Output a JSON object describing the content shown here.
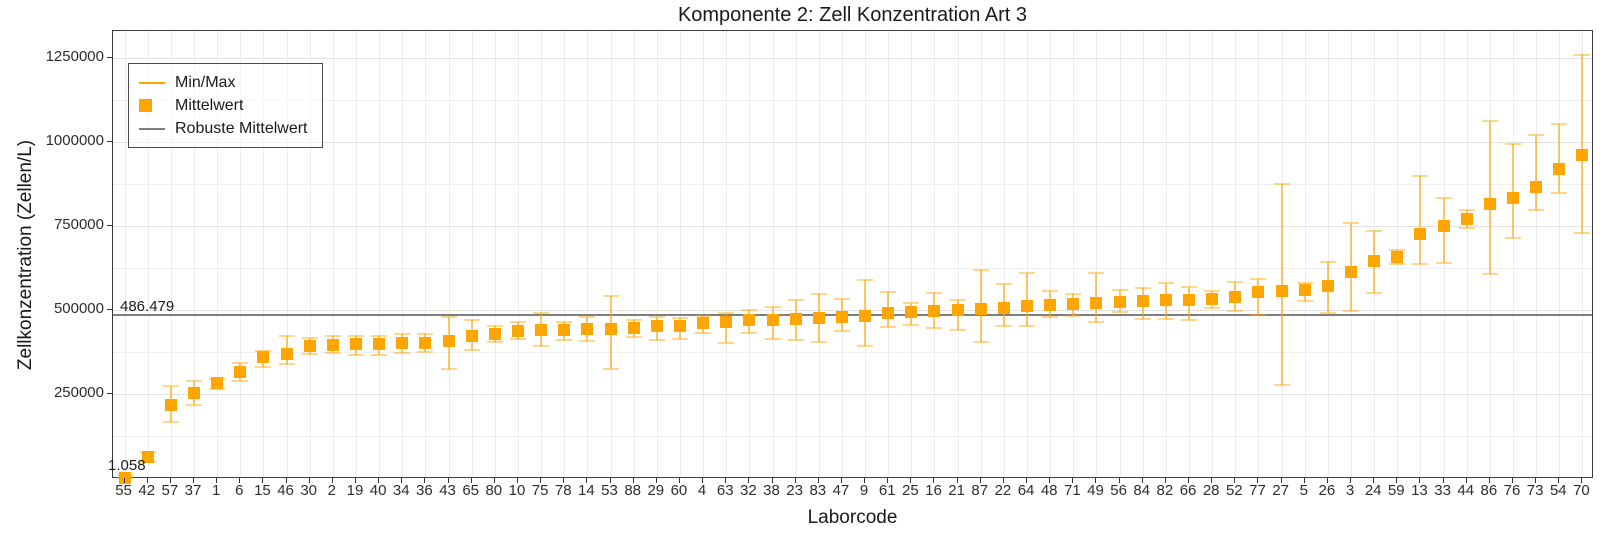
{
  "title": "Komponente 2: Zell Konzentration Art 3",
  "annotations": {
    "robust_mean_label": "486.479",
    "min_value_label": "1.058"
  },
  "legend": {
    "items": [
      {
        "label": "Min/Max",
        "type": "line",
        "color": "#ffa500"
      },
      {
        "label": "Mittelwert",
        "type": "square",
        "color": "#ffa500"
      },
      {
        "label": "Robuste Mittelwert",
        "type": "line",
        "color": "#7f7f7f"
      }
    ]
  },
  "colors": {
    "mean_marker": "#ffa500",
    "error_bar": "#ffc966",
    "robust_line": "#7f7f7f",
    "grid_major": "#e2e2e2",
    "grid_minor": "#f0f0f0",
    "panel_border": "#3a3a3a",
    "text": "#1a1a1a"
  },
  "chart_data": {
    "type": "scatter",
    "subtype": "mean-with-min-max-errorbars",
    "title": "Komponente 2: Zell Konzentration Art 3",
    "xlabel": "Laborcode",
    "ylabel": "Zellkonzentration (Zellen/L)",
    "ylim": [
      0,
      1330000
    ],
    "yticks": [
      250000,
      500000,
      750000,
      1000000,
      1250000
    ],
    "ytick_labels": [
      "250000",
      "500000",
      "750000",
      "1000000",
      "1250000"
    ],
    "yticks_minor": [
      125000,
      375000,
      625000,
      875000,
      1125000
    ],
    "grid": true,
    "legend_position": "top-left-inside",
    "robust_mean": 486479,
    "points": [
      {
        "lab": "55",
        "mean": 1058,
        "min": 600,
        "max": 9000
      },
      {
        "lab": "42",
        "mean": 64000,
        "min": 48000,
        "max": 79000
      },
      {
        "lab": "57",
        "mean": 218000,
        "min": 168000,
        "max": 275000
      },
      {
        "lab": "37",
        "mean": 255000,
        "min": 217000,
        "max": 289000
      },
      {
        "lab": "1",
        "mean": 285000,
        "min": 265000,
        "max": 296000
      },
      {
        "lab": "6",
        "mean": 316000,
        "min": 291000,
        "max": 344000
      },
      {
        "lab": "15",
        "mean": 360000,
        "min": 331000,
        "max": 380000
      },
      {
        "lab": "46",
        "mean": 370000,
        "min": 339000,
        "max": 423000
      },
      {
        "lab": "30",
        "mean": 393000,
        "min": 370000,
        "max": 418000
      },
      {
        "lab": "2",
        "mean": 397000,
        "min": 373000,
        "max": 425000
      },
      {
        "lab": "19",
        "mean": 399000,
        "min": 366000,
        "max": 423000
      },
      {
        "lab": "40",
        "mean": 400000,
        "min": 366000,
        "max": 425000
      },
      {
        "lab": "34",
        "mean": 402000,
        "min": 373000,
        "max": 428000
      },
      {
        "lab": "36",
        "mean": 404000,
        "min": 376000,
        "max": 430000
      },
      {
        "lab": "43",
        "mean": 410000,
        "min": 324000,
        "max": 481000
      },
      {
        "lab": "65",
        "mean": 423000,
        "min": 383000,
        "max": 470000
      },
      {
        "lab": "80",
        "mean": 430000,
        "min": 407000,
        "max": 452000
      },
      {
        "lab": "10",
        "mean": 437000,
        "min": 415000,
        "max": 464000
      },
      {
        "lab": "75",
        "mean": 441000,
        "min": 393000,
        "max": 492000
      },
      {
        "lab": "78",
        "mean": 442000,
        "min": 413000,
        "max": 464000
      },
      {
        "lab": "14",
        "mean": 444000,
        "min": 408000,
        "max": 480000
      },
      {
        "lab": "53",
        "mean": 445000,
        "min": 326000,
        "max": 543000
      },
      {
        "lab": "88",
        "mean": 447000,
        "min": 421000,
        "max": 472000
      },
      {
        "lab": "29",
        "mean": 452000,
        "min": 413000,
        "max": 480000
      },
      {
        "lab": "60",
        "mean": 453000,
        "min": 415000,
        "max": 477000
      },
      {
        "lab": "4",
        "mean": 462000,
        "min": 433000,
        "max": 484000
      },
      {
        "lab": "63",
        "mean": 464000,
        "min": 403000,
        "max": 492000
      },
      {
        "lab": "32",
        "mean": 471000,
        "min": 433000,
        "max": 500000
      },
      {
        "lab": "38",
        "mean": 472000,
        "min": 415000,
        "max": 511000
      },
      {
        "lab": "23",
        "mean": 474000,
        "min": 413000,
        "max": 531000
      },
      {
        "lab": "83",
        "mean": 477000,
        "min": 406000,
        "max": 548000
      },
      {
        "lab": "47",
        "mean": 481000,
        "min": 439000,
        "max": 533000
      },
      {
        "lab": "9",
        "mean": 482000,
        "min": 393000,
        "max": 590000
      },
      {
        "lab": "61",
        "mean": 492000,
        "min": 450000,
        "max": 553000
      },
      {
        "lab": "25",
        "mean": 495000,
        "min": 457000,
        "max": 523000
      },
      {
        "lab": "16",
        "mean": 497000,
        "min": 447000,
        "max": 551000
      },
      {
        "lab": "21",
        "mean": 501000,
        "min": 442000,
        "max": 531000
      },
      {
        "lab": "87",
        "mean": 503000,
        "min": 405000,
        "max": 620000
      },
      {
        "lab": "22",
        "mean": 506000,
        "min": 454000,
        "max": 577000
      },
      {
        "lab": "64",
        "mean": 512000,
        "min": 454000,
        "max": 612000
      },
      {
        "lab": "48",
        "mean": 516000,
        "min": 480000,
        "max": 556000
      },
      {
        "lab": "71",
        "mean": 518000,
        "min": 484000,
        "max": 549000
      },
      {
        "lab": "49",
        "mean": 521000,
        "min": 465000,
        "max": 610000
      },
      {
        "lab": "56",
        "mean": 525000,
        "min": 496000,
        "max": 561000
      },
      {
        "lab": "84",
        "mean": 527000,
        "min": 474000,
        "max": 566000
      },
      {
        "lab": "82",
        "mean": 530000,
        "min": 474000,
        "max": 581000
      },
      {
        "lab": "66",
        "mean": 531000,
        "min": 472000,
        "max": 569000
      },
      {
        "lab": "28",
        "mean": 534000,
        "min": 507000,
        "max": 556000
      },
      {
        "lab": "52",
        "mean": 540000,
        "min": 499000,
        "max": 585000
      },
      {
        "lab": "77",
        "mean": 553000,
        "min": 487000,
        "max": 593000
      },
      {
        "lab": "27",
        "mean": 557000,
        "min": 277000,
        "max": 874000
      },
      {
        "lab": "5",
        "mean": 559000,
        "min": 529000,
        "max": 582000
      },
      {
        "lab": "26",
        "mean": 572000,
        "min": 492000,
        "max": 643000
      },
      {
        "lab": "3",
        "mean": 615000,
        "min": 499000,
        "max": 760000
      },
      {
        "lab": "24",
        "mean": 646000,
        "min": 551000,
        "max": 735000
      },
      {
        "lab": "59",
        "mean": 657000,
        "min": 637000,
        "max": 679000
      },
      {
        "lab": "13",
        "mean": 728000,
        "min": 638000,
        "max": 898000
      },
      {
        "lab": "33",
        "mean": 750000,
        "min": 640000,
        "max": 834000
      },
      {
        "lab": "44",
        "mean": 770000,
        "min": 745000,
        "max": 797000
      },
      {
        "lab": "86",
        "mean": 816000,
        "min": 608000,
        "max": 1062000
      },
      {
        "lab": "76",
        "mean": 835000,
        "min": 716000,
        "max": 995000
      },
      {
        "lab": "73",
        "mean": 866000,
        "min": 797000,
        "max": 1021000
      },
      {
        "lab": "54",
        "mean": 920000,
        "min": 849000,
        "max": 1054000
      },
      {
        "lab": "70",
        "mean": 960000,
        "min": 729000,
        "max": 1260000
      }
    ]
  }
}
